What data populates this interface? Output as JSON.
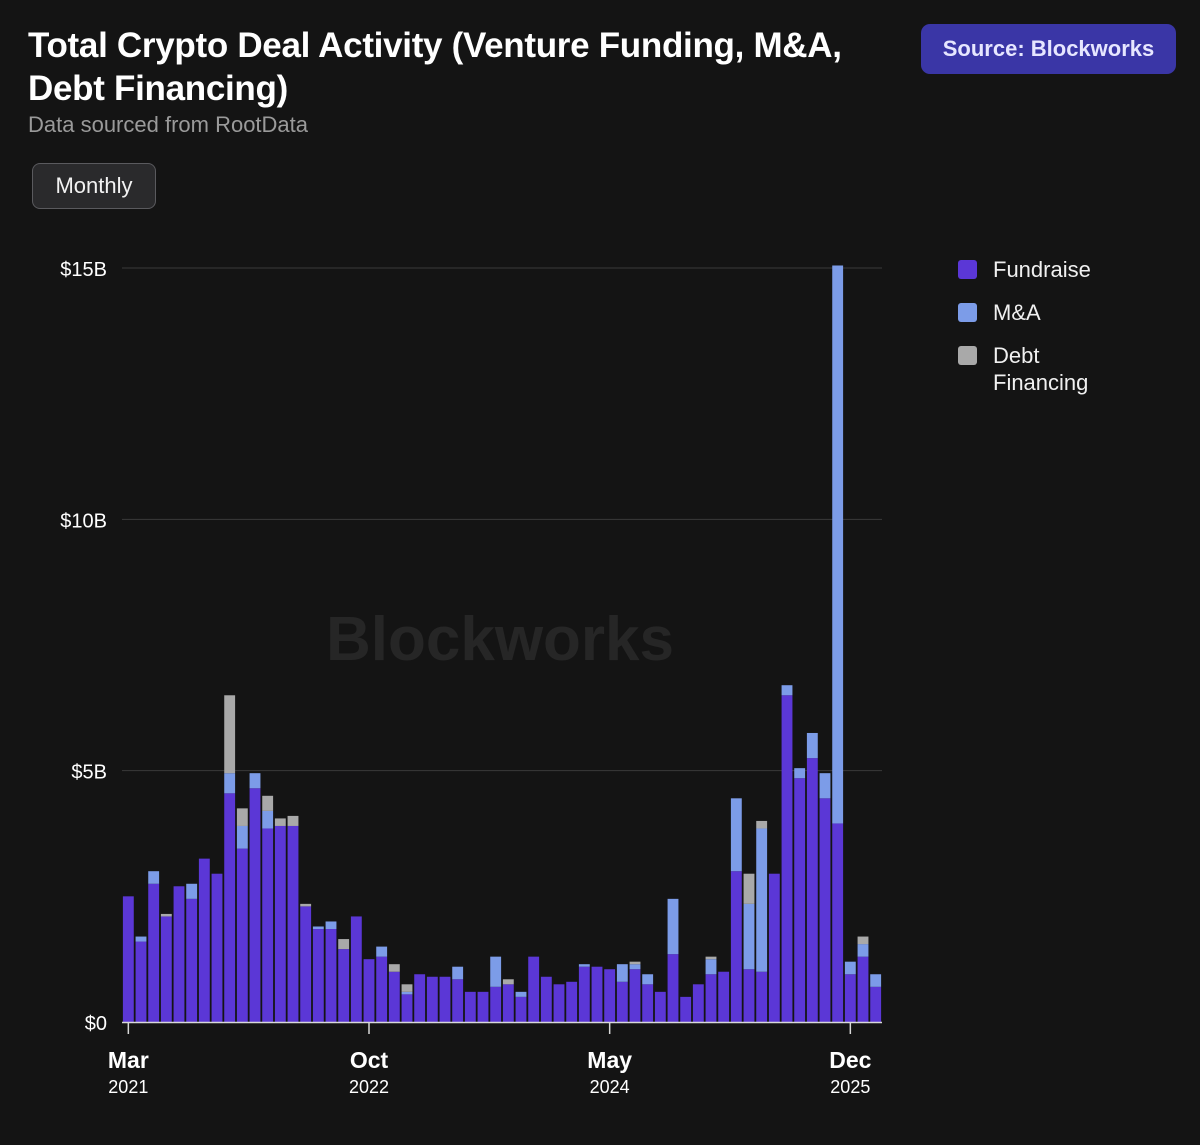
{
  "header": {
    "title": "Total Crypto Deal Activity (Venture Funding, M&A, Debt Financing)",
    "subtitle": "Data sourced from RootData",
    "source_label": "Source: Blockworks",
    "period_label": "Monthly"
  },
  "watermark": "Blockworks",
  "colors": {
    "fundraise": "#5b37d6",
    "ma": "#7c9ce8",
    "debt": "#a9a9a9",
    "background": "#141414",
    "gridline": "#3a3a3a",
    "accent_button": "#3a36a6"
  },
  "chart_data": {
    "type": "bar",
    "stacked": true,
    "title": "Total Crypto Deal Activity (Venture Funding, M&A, Debt Financing)",
    "subtitle": "Data sourced from RootData",
    "xlabel": "",
    "ylabel": "",
    "ylim": [
      0,
      15
    ],
    "y_unit": "billions USD",
    "y_ticks": [
      0,
      5,
      10,
      15
    ],
    "y_tick_labels": [
      "$0",
      "$5B",
      "$10B",
      "$15B"
    ],
    "x_ticks": [
      {
        "index": 0,
        "month": "Mar",
        "year": "2021"
      },
      {
        "index": 19,
        "month": "Oct",
        "year": "2022"
      },
      {
        "index": 38,
        "month": "May",
        "year": "2024"
      },
      {
        "index": 57,
        "month": "Dec",
        "year": "2025"
      }
    ],
    "legend_position": "right",
    "grid": true,
    "categories": [
      "2021-03",
      "2021-04",
      "2021-05",
      "2021-06",
      "2021-07",
      "2021-08",
      "2021-09",
      "2021-10",
      "2021-11",
      "2021-12",
      "2022-01",
      "2022-02",
      "2022-03",
      "2022-04",
      "2022-05",
      "2022-06",
      "2022-07",
      "2022-08",
      "2022-09",
      "2022-10",
      "2022-11",
      "2022-12",
      "2023-01",
      "2023-02",
      "2023-03",
      "2023-04",
      "2023-05",
      "2023-06",
      "2023-07",
      "2023-08",
      "2023-09",
      "2023-10",
      "2023-11",
      "2023-12",
      "2024-01",
      "2024-02",
      "2024-03",
      "2024-04",
      "2024-05",
      "2024-06",
      "2024-07",
      "2024-08",
      "2024-09",
      "2024-10",
      "2024-11",
      "2024-12",
      "2025-01",
      "2025-02",
      "2025-03",
      "2025-04",
      "2025-05",
      "2025-06",
      "2025-07",
      "2025-08",
      "2025-09",
      "2025-10",
      "2025-11",
      "2025-12",
      "2026-01",
      "2026-02"
    ],
    "series": [
      {
        "name": "Fundraise",
        "values": [
          2.5,
          1.6,
          2.75,
          2.1,
          2.7,
          2.45,
          3.25,
          2.95,
          4.55,
          3.45,
          4.65,
          3.85,
          3.9,
          3.9,
          2.3,
          1.85,
          1.85,
          1.45,
          2.1,
          1.25,
          1.3,
          1.0,
          0.55,
          0.95,
          0.9,
          0.9,
          0.85,
          0.6,
          0.6,
          0.7,
          0.75,
          0.5,
          1.3,
          0.9,
          0.75,
          0.8,
          1.1,
          1.1,
          1.05,
          0.8,
          1.05,
          0.75,
          0.6,
          1.35,
          0.5,
          0.75,
          0.95,
          1.0,
          3.0,
          1.05,
          1.0,
          2.95,
          6.5,
          4.85,
          5.25,
          4.45,
          3.95,
          0.95,
          1.3,
          0.7
        ]
      },
      {
        "name": "M&A",
        "values": [
          0.0,
          0.1,
          0.25,
          0.0,
          0.0,
          0.3,
          0.0,
          0.0,
          0.4,
          0.45,
          0.3,
          0.35,
          0.0,
          0.0,
          0.0,
          0.05,
          0.15,
          0.0,
          0.0,
          0.0,
          0.2,
          0.0,
          0.05,
          0.0,
          0.0,
          0.0,
          0.25,
          0.0,
          0.0,
          0.6,
          0.0,
          0.1,
          0.0,
          0.0,
          0.0,
          0.0,
          0.05,
          0.0,
          0.0,
          0.35,
          0.1,
          0.2,
          0.0,
          1.1,
          0.0,
          0.0,
          0.3,
          0.0,
          1.45,
          1.3,
          2.85,
          0.0,
          0.2,
          0.2,
          0.5,
          0.5,
          11.1,
          0.25,
          0.25,
          0.25
        ]
      },
      {
        "name": "Debt Financing",
        "values": [
          0.0,
          0.0,
          0.0,
          0.05,
          0.0,
          0.0,
          0.0,
          0.0,
          1.55,
          0.35,
          0.0,
          0.3,
          0.15,
          0.2,
          0.05,
          0.0,
          0.0,
          0.2,
          0.0,
          0.0,
          0.0,
          0.15,
          0.15,
          0.0,
          0.0,
          0.0,
          0.0,
          0.0,
          0.0,
          0.0,
          0.1,
          0.0,
          0.0,
          0.0,
          0.0,
          0.0,
          0.0,
          0.0,
          0.0,
          0.0,
          0.05,
          0.0,
          0.0,
          0.0,
          0.0,
          0.0,
          0.05,
          0.0,
          0.0,
          0.6,
          0.15,
          0.0,
          0.0,
          0.0,
          0.0,
          0.0,
          0.0,
          0.0,
          0.15,
          0.0
        ]
      }
    ]
  }
}
